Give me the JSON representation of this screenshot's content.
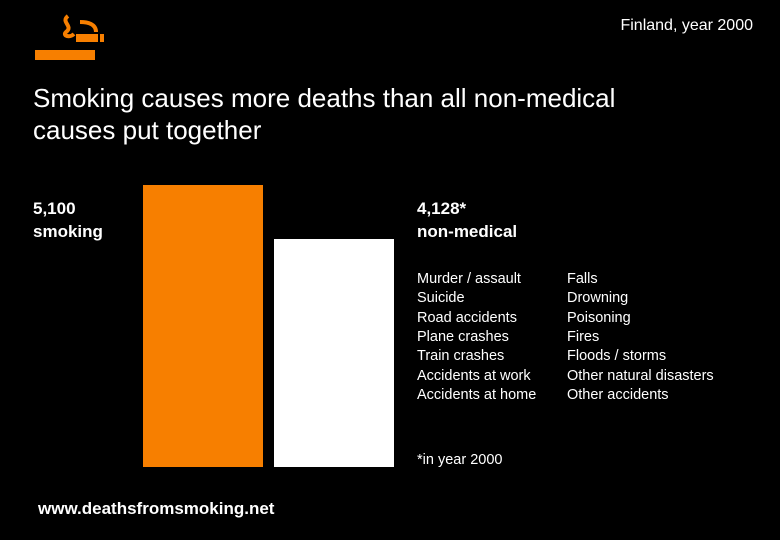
{
  "chart_data": {
    "type": "bar",
    "title": "Smoking causes more deaths than all non-medical causes put together",
    "subtitle": "Finland, year 2000",
    "categories": [
      "smoking",
      "non-medical"
    ],
    "values": [
      5100,
      4128
    ],
    "value_labels": [
      "5,100",
      "4,128*"
    ],
    "colors": [
      "#f77f00",
      "#ffffff"
    ],
    "causes_left": [
      "Murder / assault",
      "Suicide",
      "Road accidents",
      "Plane crashes",
      "Train crashes",
      "Accidents at work",
      "Accidents at home"
    ],
    "causes_right": [
      "Falls",
      "Drowning",
      "Poisoning",
      "Fires",
      "Floods / storms",
      "Other natural disasters",
      "Other accidents"
    ],
    "footnote": "*in year 2000",
    "source": "www.deathsfromsmoking.net"
  }
}
